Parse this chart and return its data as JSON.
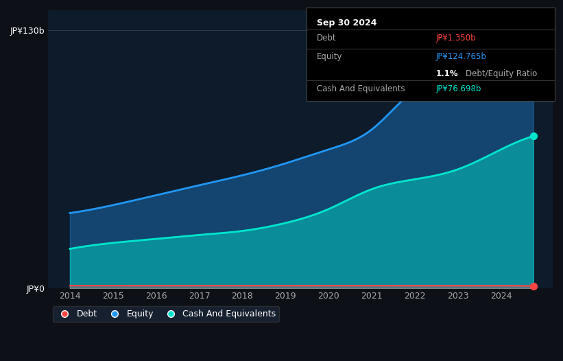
{
  "background_color": "#0d1117",
  "plot_bg_color": "#0d1b2a",
  "title_box": {
    "date": "Sep 30 2024",
    "debt_label": "Debt",
    "debt_value": "JP¥1.350b",
    "equity_label": "Equity",
    "equity_value": "JP¥124.765b",
    "ratio_value": "1.1%",
    "ratio_label": "Debt/Equity Ratio",
    "cash_label": "Cash And Equivalents",
    "cash_value": "JP¥76.698b"
  },
  "years": [
    2014,
    2015,
    2016,
    2017,
    2018,
    2019,
    2020,
    2021,
    2022,
    2023,
    2024,
    2024.75
  ],
  "equity_values": [
    38,
    42,
    47,
    52,
    57,
    63,
    70,
    80,
    100,
    110,
    122,
    124.765
  ],
  "cash_values": [
    20,
    23,
    25,
    27,
    29,
    33,
    40,
    50,
    55,
    60,
    70,
    76.698
  ],
  "debt_values": [
    1.5,
    1.5,
    1.5,
    1.5,
    1.5,
    1.5,
    1.5,
    1.5,
    1.5,
    1.5,
    1.5,
    1.35
  ],
  "equity_color": "#2196F3",
  "cash_color": "#00E5CC",
  "debt_color": "#FF4444",
  "ylim": [
    0,
    140
  ],
  "ytick_labels": [
    "JP¥0",
    "JP¥130b"
  ],
  "ytick_values": [
    0,
    130
  ],
  "xlim": [
    2013.5,
    2025.2
  ],
  "xtick_labels": [
    "2014",
    "2015",
    "2016",
    "2017",
    "2018",
    "2019",
    "2020",
    "2021",
    "2022",
    "2023",
    "2024"
  ],
  "xtick_values": [
    2014,
    2015,
    2016,
    2017,
    2018,
    2019,
    2020,
    2021,
    2022,
    2023,
    2024
  ],
  "grid_color": "#2a3a4a",
  "legend_items": [
    "Debt",
    "Equity",
    "Cash And Equivalents"
  ],
  "legend_colors": [
    "#FF4444",
    "#2196F3",
    "#00E5CC"
  ]
}
